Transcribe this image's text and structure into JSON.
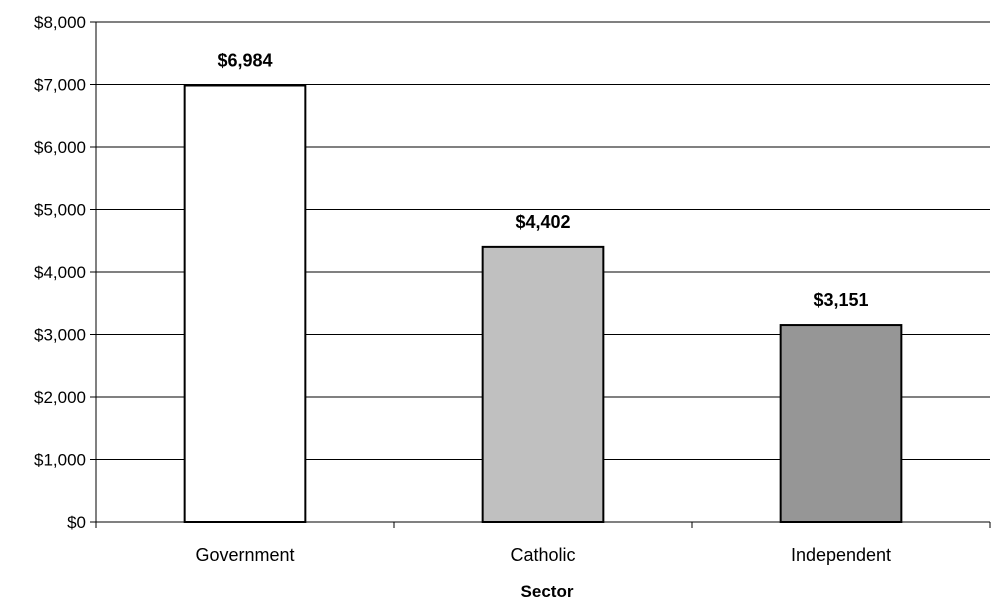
{
  "chart_data": {
    "type": "bar",
    "title": "",
    "xlabel": "Sector",
    "ylabel": "",
    "categories": [
      "Government",
      "Catholic",
      "Independent"
    ],
    "values": [
      6984,
      4402,
      3151
    ],
    "data_labels": [
      "$6,984",
      "$4,402",
      "$3,151"
    ],
    "ylim": [
      0,
      8000
    ],
    "yticks": [
      0,
      1000,
      2000,
      3000,
      4000,
      5000,
      6000,
      7000,
      8000
    ],
    "ytick_labels": [
      "$0",
      "$1,000",
      "$2,000",
      "$3,000",
      "$4,000",
      "$5,000",
      "$6,000",
      "$7,000",
      "$8,000"
    ],
    "grid": true,
    "legend": "none",
    "bar_colors": [
      "#ffffff",
      "#c0c0c0",
      "#969696"
    ],
    "bar_edge_color": "#000000",
    "grid_color": "#000000"
  }
}
